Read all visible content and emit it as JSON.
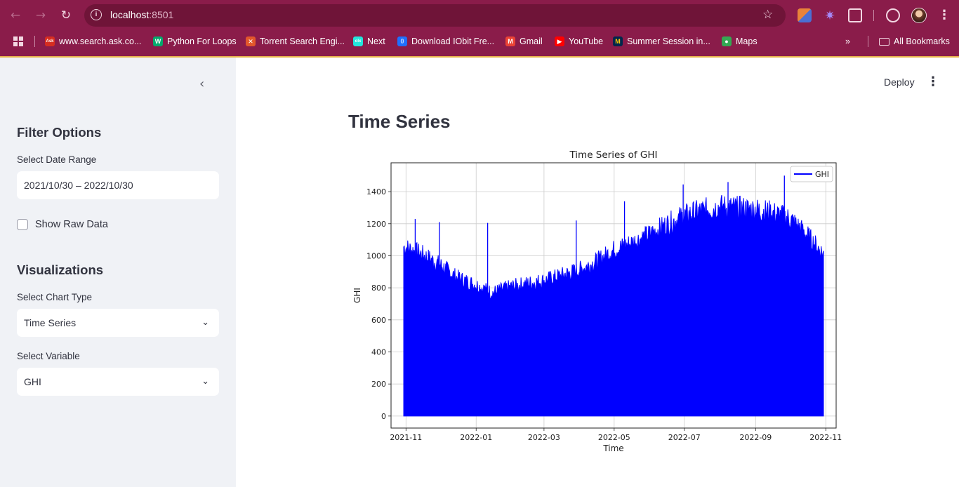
{
  "browser": {
    "host": "localhost",
    "port": ":8501",
    "bookmarks": [
      {
        "label": "www.search.ask.co...",
        "icon": "ask-icon",
        "color": "#d62d20"
      },
      {
        "label": "Python For Loops",
        "icon": "w3-icon",
        "color": "#04aa6d"
      },
      {
        "label": "Torrent Search Engi...",
        "icon": "torrent-icon",
        "color": "#e2572b"
      },
      {
        "label": "Next",
        "icon": "olx-icon",
        "color": "#23e5db"
      },
      {
        "label": "Download IObit Fre...",
        "icon": "iobit-icon",
        "color": "#1e6fff"
      },
      {
        "label": "Gmail",
        "icon": "gmail-icon",
        "color": "#ea4335"
      },
      {
        "label": "YouTube",
        "icon": "youtube-icon",
        "color": "#ff0000"
      },
      {
        "label": "Summer Session in...",
        "icon": "umich-icon",
        "color": "#ffcb05"
      },
      {
        "label": "Maps",
        "icon": "maps-icon",
        "color": "#34a853"
      }
    ],
    "all_bookmarks": "All Bookmarks",
    "more": "»"
  },
  "sidebar": {
    "filter_heading": "Filter Options",
    "date_label": "Select Date Range",
    "date_value": "2021/10/30 – 2022/10/30",
    "raw_data_label": "Show Raw Data",
    "viz_heading": "Visualizations",
    "chart_type_label": "Select Chart Type",
    "chart_type_value": "Time Series",
    "variable_label": "Select Variable",
    "variable_value": "GHI"
  },
  "main": {
    "deploy": "Deploy",
    "title": "Time Series"
  },
  "chart_data": {
    "type": "line",
    "title": "Time Series of GHI",
    "xlabel": "Time",
    "ylabel": "GHI",
    "x_ticks": [
      "2021-11",
      "2022-01",
      "2022-03",
      "2022-05",
      "2022-07",
      "2022-09",
      "2022-11"
    ],
    "y_ticks": [
      0,
      200,
      400,
      600,
      800,
      1000,
      1200,
      1400
    ],
    "xlim": [
      "2021-10-19",
      "2022-11-10"
    ],
    "ylim": [
      -75,
      1580
    ],
    "grid": true,
    "legend": "top-right",
    "series": [
      {
        "name": "GHI",
        "color": "#0000ff",
        "x": [
          "2021-10-30",
          "2021-11-15",
          "2021-12-01",
          "2021-12-15",
          "2022-01-01",
          "2022-01-15",
          "2022-02-01",
          "2022-02-15",
          "2022-03-01",
          "2022-03-15",
          "2022-04-01",
          "2022-04-15",
          "2022-05-01",
          "2022-05-15",
          "2022-06-01",
          "2022-06-15",
          "2022-07-01",
          "2022-07-15",
          "2022-08-01",
          "2022-08-15",
          "2022-09-01",
          "2022-09-15",
          "2022-10-01",
          "2022-10-15",
          "2022-10-30"
        ],
        "daily_max": [
          1100,
          1050,
          980,
          900,
          850,
          800,
          840,
          860,
          880,
          910,
          950,
          1000,
          1080,
          1120,
          1180,
          1240,
          1300,
          1330,
          1360,
          1350,
          1340,
          1320,
          1280,
          1180,
          1050
        ],
        "daily_min": [
          0,
          0,
          0,
          0,
          0,
          0,
          0,
          0,
          0,
          0,
          0,
          0,
          0,
          0,
          0,
          0,
          0,
          0,
          0,
          0,
          0,
          0,
          0,
          0,
          0
        ],
        "peaks": [
          {
            "x": "2021-11-09",
            "y": 1230
          },
          {
            "x": "2021-11-30",
            "y": 1210
          },
          {
            "x": "2022-01-11",
            "y": 1205
          },
          {
            "x": "2022-03-29",
            "y": 1220
          },
          {
            "x": "2022-05-10",
            "y": 1340
          },
          {
            "x": "2022-06-30",
            "y": 1445
          },
          {
            "x": "2022-08-08",
            "y": 1460
          },
          {
            "x": "2022-09-26",
            "y": 1500
          }
        ]
      }
    ]
  }
}
